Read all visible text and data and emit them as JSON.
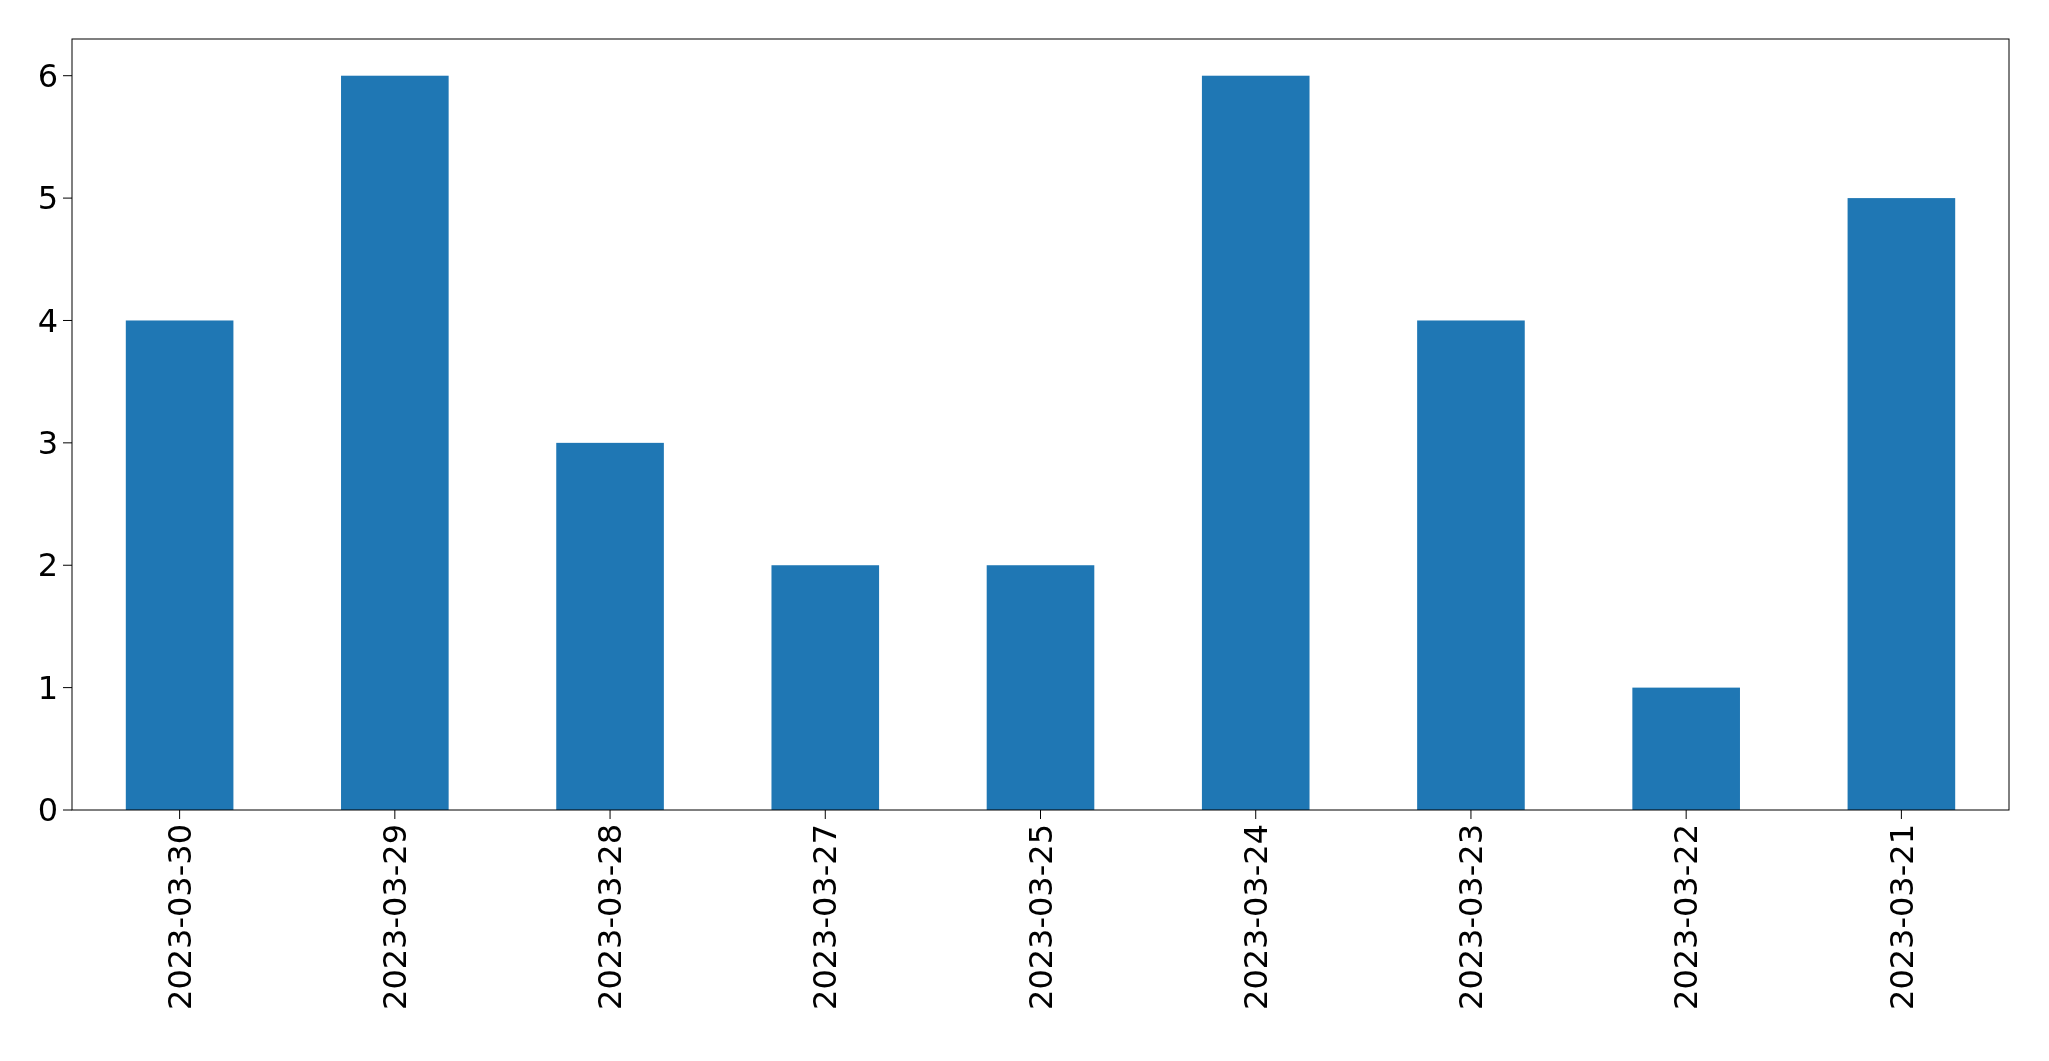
{
  "chart_data": {
    "type": "bar",
    "categories": [
      "2023-03-30",
      "2023-03-29",
      "2023-03-28",
      "2023-03-27",
      "2023-03-25",
      "2023-03-24",
      "2023-03-23",
      "2023-03-22",
      "2023-03-21"
    ],
    "values": [
      4,
      6,
      3,
      2,
      2,
      6,
      4,
      1,
      5
    ],
    "color": "#1f77b4",
    "ylim": [
      0,
      6.3
    ],
    "yticks": [
      0,
      1,
      2,
      3,
      4,
      5,
      6
    ],
    "grid": false
  }
}
